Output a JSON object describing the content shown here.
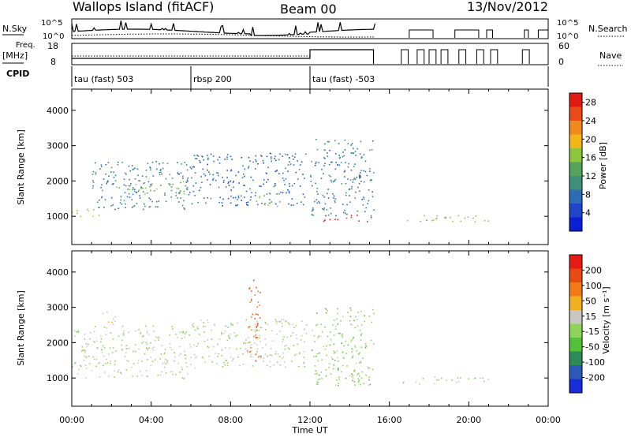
{
  "header": {
    "title": "Wallops Island (fitACF)",
    "beam": "Beam 00",
    "date": "13/Nov/2012"
  },
  "strip_labels": {
    "nsky": "N.Sky",
    "nsky_ticks": [
      "10^5",
      "10^0"
    ],
    "nsearch": "N.Search",
    "freq_top": "Freq.",
    "freq_unit": "[MHz]",
    "freq_ticks": [
      "18",
      "8"
    ],
    "nave": "Nave",
    "nave_ticks": [
      "60",
      "0"
    ],
    "cpid": "CPID"
  },
  "cpid_segments": [
    {
      "label": "tau (fast) 503",
      "start_hour": 0,
      "end_hour": 6
    },
    {
      "label": "rbsp 200",
      "start_hour": 6,
      "end_hour": 12
    },
    {
      "label": "tau (fast) -503",
      "start_hour": 12,
      "end_hour": 24
    }
  ],
  "xaxis": {
    "label": "Time UT",
    "ticks": [
      "00:00",
      "04:00",
      "08:00",
      "12:00",
      "16:00",
      "20:00",
      "00:00"
    ],
    "range_hours": [
      0,
      24
    ]
  },
  "colors": {
    "power": [
      "#0a1fd6",
      "#2145c9",
      "#2e6db3",
      "#3f8f7a",
      "#55a35a",
      "#8cc63f",
      "#f2b619",
      "#f08a1c",
      "#ec4a16",
      "#e31a12"
    ],
    "velocity": [
      "#1a2bd8",
      "#2d5ab8",
      "#2e8b57",
      "#55c03a",
      "#8fd35a",
      "#c8c8c0",
      "#f0b020",
      "#f07a18",
      "#e84a14",
      "#e51a12"
    ]
  },
  "chart_data": [
    {
      "type": "heatmap",
      "name": "Power",
      "ylabel": "Slant Range [km]",
      "yticks": [
        "1000",
        "2000",
        "3000",
        "4000"
      ],
      "ylim": [
        200,
        4600
      ],
      "xlim_hours": [
        0,
        24
      ],
      "colorbar": {
        "label": "Power [dB]",
        "ticks": [
          "4",
          "8",
          "12",
          "16",
          "20",
          "24",
          "28"
        ],
        "range": [
          0,
          30
        ]
      },
      "features": [
        {
          "t0": 0.0,
          "t1": 1.5,
          "r0": 1000,
          "r1": 1250,
          "value": 17
        },
        {
          "t0": 1.0,
          "t1": 6.0,
          "r0": 1200,
          "r1": 2600,
          "value": 9
        },
        {
          "t0": 2.2,
          "t1": 5.8,
          "r0": 1650,
          "r1": 2050,
          "value": 15
        },
        {
          "t0": 6.0,
          "t1": 11.8,
          "r0": 1300,
          "r1": 2800,
          "value": 7
        },
        {
          "t0": 9.0,
          "t1": 10.5,
          "r0": 1300,
          "r1": 1700,
          "value": 15
        },
        {
          "t0": 12.0,
          "t1": 15.2,
          "r0": 1000,
          "r1": 3200,
          "value": 8
        },
        {
          "t0": 12.5,
          "t1": 15.2,
          "r0": 850,
          "r1": 1050,
          "value": 29
        },
        {
          "t0": 16.5,
          "t1": 21.0,
          "r0": 850,
          "r1": 1050,
          "value": 16
        }
      ]
    },
    {
      "type": "heatmap",
      "name": "Velocity",
      "ylabel": "Slant Range [km]",
      "yticks": [
        "1000",
        "2000",
        "3000",
        "4000"
      ],
      "ylim": [
        200,
        4600
      ],
      "xlim_hours": [
        0,
        24
      ],
      "colorbar": {
        "label": "Velocity [m s⁻¹]",
        "ticks": [
          "200",
          "100",
          "50",
          "15",
          "-15",
          "-50",
          "-100",
          "-200"
        ],
        "range": [
          250,
          -250
        ]
      },
      "features": [
        {
          "t0": 0.0,
          "t1": 6.0,
          "r0": 1000,
          "r1": 2500,
          "value": 0
        },
        {
          "t0": 1.5,
          "t1": 2.3,
          "r0": 2500,
          "r1": 2900,
          "value": -60
        },
        {
          "t0": 6.0,
          "t1": 11.8,
          "r0": 1300,
          "r1": 2700,
          "value": 0
        },
        {
          "t0": 8.8,
          "t1": 9.5,
          "r0": 1500,
          "r1": 3800,
          "value": -150
        },
        {
          "t0": 12.0,
          "t1": 15.2,
          "r0": 800,
          "r1": 3000,
          "value": 30
        },
        {
          "t0": 16.5,
          "t1": 21.0,
          "r0": 850,
          "r1": 1050,
          "value": 0
        }
      ]
    }
  ]
}
